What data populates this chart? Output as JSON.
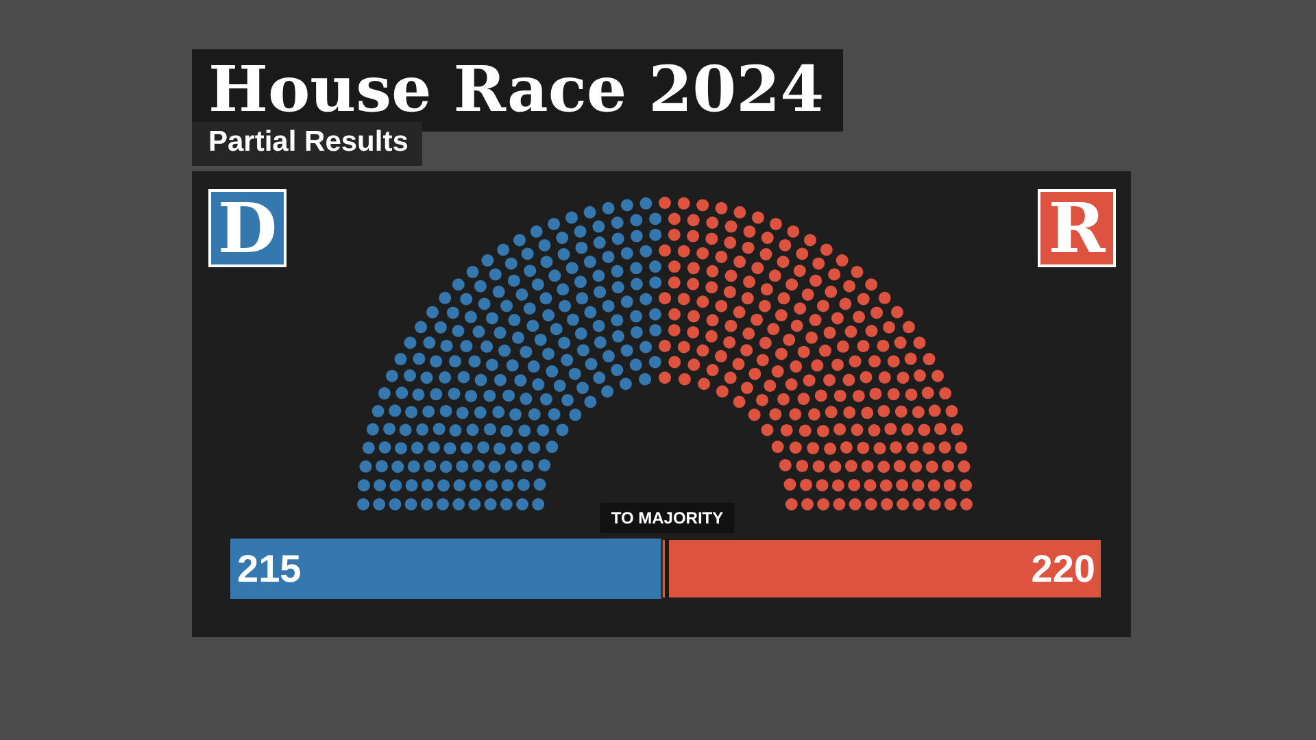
{
  "chart_data": {
    "type": "bar",
    "title": "House Race 2024",
    "subtitle": "Partial Results",
    "orientation": "horizontal",
    "stacked": true,
    "categories": [
      null
    ],
    "xlim": [
      0,
      435
    ],
    "tick_labels": false,
    "data_labels": true,
    "series": [
      {
        "name": "D",
        "color": "#3578b0",
        "values": [
          215
        ]
      },
      {
        "name": "R",
        "color": "#de5240",
        "values": [
          220
        ]
      }
    ],
    "ref_lines": [
      {
        "axis": "x",
        "value": 218,
        "label": "TO MAJORITY"
      }
    ]
  }
}
